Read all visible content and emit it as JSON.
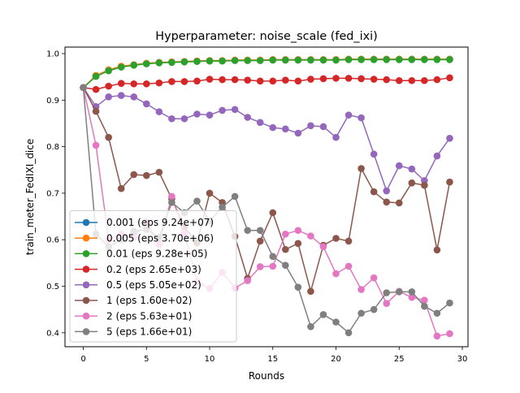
{
  "chart_data": {
    "type": "line",
    "title": "Hyperparameter: noise_scale (fed_ixi)",
    "xlabel": "Rounds",
    "ylabel": "train_meter_FedIXI_dice",
    "xlim": [
      -1.45,
      30.45
    ],
    "ylim": [
      0.37,
      1.014
    ],
    "xticks": [
      0,
      5,
      10,
      15,
      20,
      25,
      30
    ],
    "xtick_labels": [
      "0",
      "5",
      "10",
      "15",
      "20",
      "25",
      "30"
    ],
    "yticks": [
      0.4,
      0.5,
      0.6,
      0.7,
      0.8,
      0.9,
      1.0
    ],
    "ytick_labels": [
      "0.4",
      "0.5",
      "0.6",
      "0.7",
      "0.8",
      "0.9",
      "1.0"
    ],
    "grid": false,
    "legend_position": "lower-left",
    "x": [
      0,
      1,
      2,
      3,
      4,
      5,
      6,
      7,
      8,
      9,
      10,
      11,
      12,
      13,
      14,
      15,
      16,
      17,
      18,
      19,
      20,
      21,
      22,
      23,
      24,
      25,
      26,
      27,
      28,
      29
    ],
    "series": [
      {
        "name": "0.001 (eps 9.24e+07)",
        "color": "#1f77b4",
        "values": [
          0.927,
          0.952,
          0.965,
          0.972,
          0.976,
          0.979,
          0.981,
          0.982,
          0.983,
          0.984,
          0.985,
          0.985,
          0.986,
          0.986,
          0.986,
          0.987,
          0.987,
          0.987,
          0.987,
          0.987,
          0.987,
          0.988,
          0.988,
          0.988,
          0.988,
          0.988,
          0.988,
          0.988,
          0.988,
          0.988
        ]
      },
      {
        "name": "0.005 (eps 3.70e+06)",
        "color": "#ff7f0e",
        "values": [
          0.927,
          0.953,
          0.965,
          0.973,
          0.976,
          0.979,
          0.981,
          0.982,
          0.983,
          0.984,
          0.985,
          0.985,
          0.986,
          0.986,
          0.986,
          0.987,
          0.987,
          0.987,
          0.987,
          0.987,
          0.987,
          0.988,
          0.988,
          0.988,
          0.988,
          0.988,
          0.988,
          0.988,
          0.988,
          0.988
        ]
      },
      {
        "name": "0.01 (eps 9.28e+05)",
        "color": "#2ca02c",
        "values": [
          0.927,
          0.951,
          0.963,
          0.971,
          0.975,
          0.978,
          0.98,
          0.981,
          0.982,
          0.983,
          0.984,
          0.984,
          0.985,
          0.985,
          0.985,
          0.986,
          0.986,
          0.986,
          0.986,
          0.986,
          0.986,
          0.987,
          0.987,
          0.987,
          0.987,
          0.987,
          0.987,
          0.987,
          0.987,
          0.987
        ]
      },
      {
        "name": "0.2 (eps 2.65e+03)",
        "color": "#d62728",
        "values": [
          0.927,
          0.923,
          0.93,
          0.936,
          0.935,
          0.935,
          0.937,
          0.94,
          0.94,
          0.941,
          0.945,
          0.944,
          0.944,
          0.943,
          0.941,
          0.941,
          0.943,
          0.941,
          0.945,
          0.946,
          0.947,
          0.947,
          0.946,
          0.945,
          0.944,
          0.942,
          0.942,
          0.942,
          0.944,
          0.948
        ]
      },
      {
        "name": "0.5 (eps 5.05e+02)",
        "color": "#9467bd",
        "values": [
          0.927,
          0.886,
          0.907,
          0.91,
          0.907,
          0.892,
          0.875,
          0.86,
          0.86,
          0.87,
          0.868,
          0.878,
          0.88,
          0.863,
          0.852,
          0.841,
          0.838,
          0.829,
          0.845,
          0.843,
          0.82,
          0.868,
          0.862,
          0.784,
          0.705,
          0.759,
          0.752,
          0.727,
          0.78,
          0.818
        ]
      },
      {
        "name": "1 (eps 1.60e+02)",
        "color": "#8c564b",
        "values": [
          0.927,
          0.876,
          0.82,
          0.71,
          0.74,
          0.738,
          0.745,
          0.688,
          0.627,
          0.593,
          0.7,
          0.68,
          0.607,
          0.517,
          0.597,
          0.658,
          0.579,
          0.592,
          0.489,
          0.588,
          0.603,
          0.597,
          0.753,
          0.703,
          0.681,
          0.679,
          0.722,
          0.717,
          0.578,
          0.724
        ]
      },
      {
        "name": "2 (eps 5.63e+01)",
        "color": "#e377c2",
        "values": [
          0.927,
          0.803,
          0.6,
          0.612,
          0.605,
          0.638,
          0.59,
          0.693,
          0.615,
          0.51,
          0.495,
          0.53,
          0.496,
          0.512,
          0.542,
          0.543,
          0.612,
          0.62,
          0.608,
          0.585,
          0.527,
          0.543,
          0.493,
          0.518,
          0.463,
          0.489,
          0.476,
          0.47,
          0.393,
          0.398
        ]
      },
      {
        "name": "5 (eps 1.66e+01)",
        "color": "#7f7f7f",
        "values": [
          0.927,
          0.612,
          0.585,
          0.6,
          0.618,
          0.622,
          0.605,
          0.68,
          0.658,
          0.683,
          0.64,
          0.67,
          0.693,
          0.62,
          0.62,
          0.564,
          0.545,
          0.498,
          0.413,
          0.439,
          0.423,
          0.4,
          0.442,
          0.45,
          0.486,
          0.488,
          0.488,
          0.457,
          0.442,
          0.464
        ]
      }
    ]
  }
}
